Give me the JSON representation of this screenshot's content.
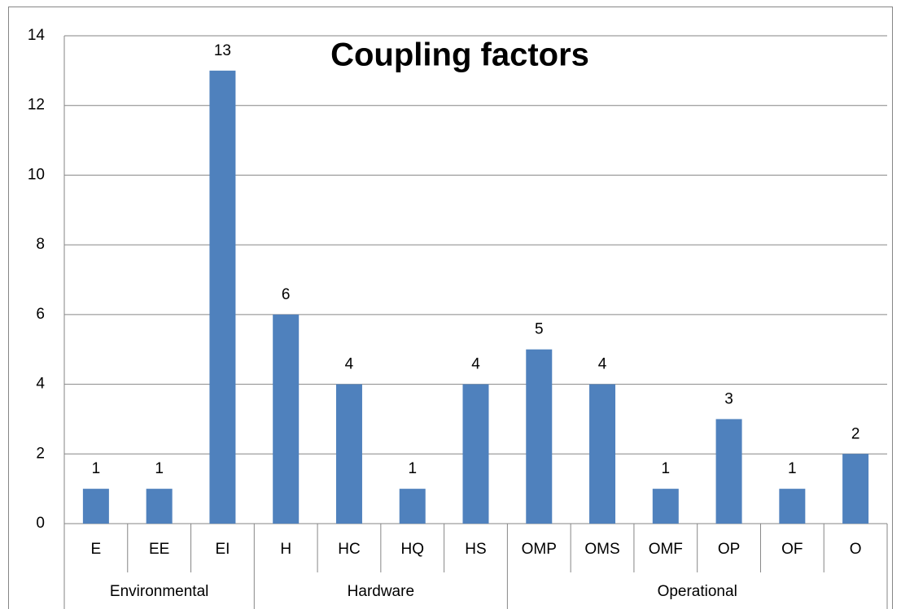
{
  "chart_data": {
    "type": "bar",
    "title": "Coupling factors",
    "color": "#4f81bd",
    "groups": [
      {
        "name": "Environmental",
        "categories": [
          "E",
          "EE",
          "EI"
        ],
        "values": [
          1,
          1,
          13
        ]
      },
      {
        "name": "Hardware",
        "categories": [
          "H",
          "HC",
          "HQ",
          "HS"
        ],
        "values": [
          6,
          4,
          1,
          4
        ]
      },
      {
        "name": "Operational",
        "categories": [
          "OMP",
          "OMS",
          "OMF",
          "OP",
          "OF",
          "O"
        ],
        "values": [
          5,
          4,
          1,
          3,
          1,
          2
        ]
      }
    ],
    "ylim": [
      0,
      14
    ],
    "yticks": [
      0,
      2,
      4,
      6,
      8,
      10,
      12,
      14
    ],
    "grid": true
  }
}
